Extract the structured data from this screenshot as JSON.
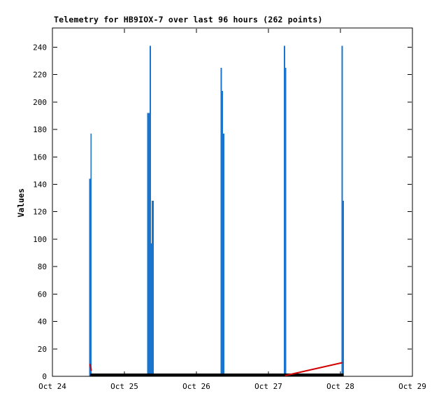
{
  "chart_data": {
    "type": "line",
    "title": "Telemetry for HB9IOX-7 over last 96 hours (262 points)",
    "ylabel": "Values",
    "xlabel": "",
    "x_tick_labels": [
      "Oct 24",
      "Oct 25",
      "Oct 26",
      "Oct 27",
      "Oct 28",
      "Oct 29"
    ],
    "y_tick_values": [
      0,
      20,
      40,
      60,
      80,
      100,
      120,
      140,
      160,
      180,
      200,
      220,
      240
    ],
    "ylim": [
      0,
      254
    ],
    "x_range_days": [
      0,
      5
    ],
    "grid": false,
    "legend_position": "none",
    "colors": {
      "spikes": "#1874CD",
      "red_channel": "#D40000",
      "zero_baseline": "#000000",
      "axis": "#000000",
      "background": "#FFFFFF"
    },
    "series": [
      {
        "name": "telemetry-values-spikes",
        "type": "vertical-spikes",
        "color": "#1874CD",
        "spikes": [
          {
            "day": 0.525,
            "peak": 144,
            "width": 3
          },
          {
            "day": 0.535,
            "peak": 177,
            "width": 1.6
          },
          {
            "day": 1.335,
            "peak": 192,
            "width": 4
          },
          {
            "day": 1.36,
            "peak": 241,
            "width": 2
          },
          {
            "day": 1.375,
            "peak": 97,
            "width": 3
          },
          {
            "day": 1.395,
            "peak": 128,
            "width": 3
          },
          {
            "day": 2.345,
            "peak": 225,
            "width": 2
          },
          {
            "day": 2.358,
            "peak": 208,
            "width": 2.5
          },
          {
            "day": 2.365,
            "peak": 177,
            "width": 5
          },
          {
            "day": 3.225,
            "peak": 241,
            "width": 2
          },
          {
            "day": 3.235,
            "peak": 225,
            "width": 3
          },
          {
            "day": 4.025,
            "peak": 241,
            "width": 2
          },
          {
            "day": 4.035,
            "peak": 128,
            "width": 3
          }
        ]
      },
      {
        "name": "zero-baseline",
        "type": "line",
        "color": "#000000",
        "stroke_width": 4,
        "points": [
          {
            "day": 0.525,
            "value": 0
          },
          {
            "day": 4.04,
            "value": 0
          }
        ]
      },
      {
        "name": "red-channel-rising",
        "type": "line",
        "color": "#D40000",
        "stroke_width": 2,
        "points": [
          {
            "day": 3.23,
            "value": 0
          },
          {
            "day": 4.03,
            "value": 10
          }
        ]
      },
      {
        "name": "red-channel-mark",
        "type": "line",
        "color": "#D40000",
        "stroke_width": 2,
        "points": [
          {
            "day": 0.522,
            "value": 9
          },
          {
            "day": 0.54,
            "value": 4
          }
        ]
      }
    ]
  }
}
